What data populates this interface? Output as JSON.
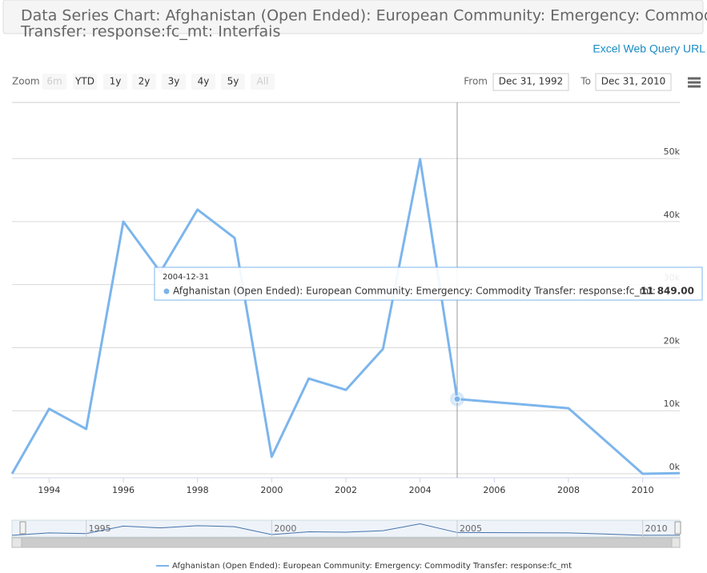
{
  "header": {
    "title": "Data Series Chart: Afghanistan (Open Ended): European Community: Emergency: Commodity Transfer: response:fc_mt: Interfais",
    "link": "Excel Web Query URL"
  },
  "toolbar": {
    "zoom_label": "Zoom",
    "zoom_buttons": [
      "6m",
      "YTD",
      "1y",
      "2y",
      "3y",
      "4y",
      "5y",
      "All"
    ],
    "from_label": "From",
    "from": "Dec 31, 1992",
    "to_label": "To",
    "to": "Dec 31, 2010"
  },
  "chart_data": {
    "type": "line",
    "x": [
      1993,
      1994,
      1995,
      1996,
      1997,
      1998,
      1999,
      2000,
      2001,
      2002,
      2003,
      2004,
      2005,
      2008,
      2010,
      2011
    ],
    "series": [
      {
        "name": "Afghanistan (Open Ended): European Community: Emergency: Commodity Transfer: response:fc_mt",
        "color": "#7cb5ec",
        "values": [
          0,
          10300,
          7100,
          40000,
          32000,
          41900,
          37400,
          2700,
          15100,
          13300,
          19800,
          49900,
          11849,
          10400,
          0,
          100
        ]
      }
    ],
    "xlim": [
      1993,
      2011
    ],
    "xticks": [
      1994,
      1996,
      1998,
      2000,
      2002,
      2004,
      2006,
      2008,
      2010
    ],
    "ylim": [
      -635,
      58900
    ],
    "yticks": [
      {
        "value": 0,
        "label": "0k"
      },
      {
        "value": 10000,
        "label": "10k"
      },
      {
        "value": 20000,
        "label": "20k"
      },
      {
        "value": 30000,
        "label": "30k"
      },
      {
        "value": 40000,
        "label": "40k"
      },
      {
        "value": 50000,
        "label": "50k"
      }
    ],
    "grid": true,
    "navigator_ticks": [
      1995,
      2000,
      2005,
      2010
    ],
    "tooltip": {
      "x": "2004-12-31",
      "value": 11849,
      "label": "11 849.00"
    }
  }
}
